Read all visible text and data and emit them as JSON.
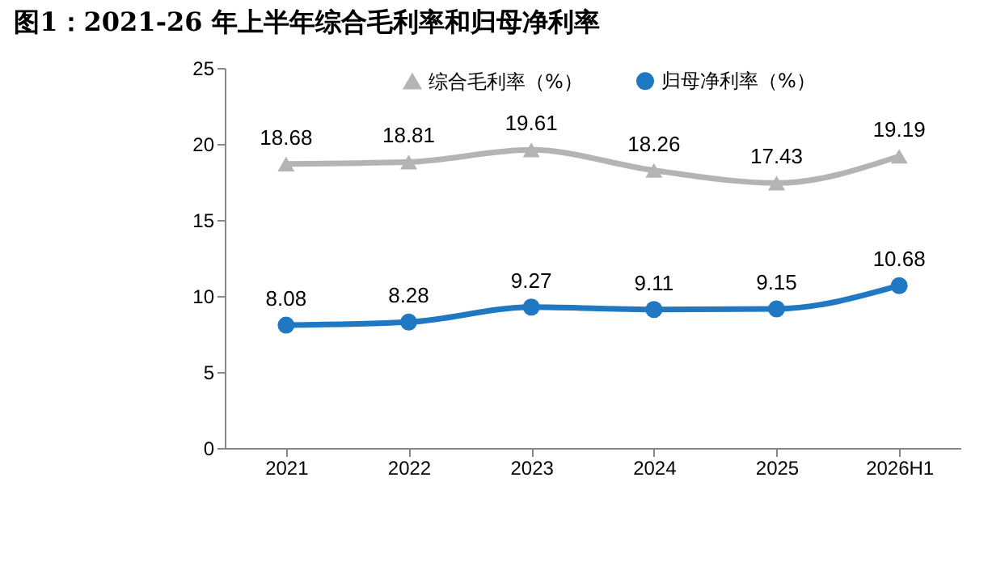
{
  "chart_data": {
    "type": "line",
    "title": "图1：2021-26 年上半年综合毛利率和归母净利率",
    "categories": [
      "2021",
      "2022",
      "2023",
      "2024",
      "2025",
      "2026H1"
    ],
    "series": [
      {
        "name": "综合毛利率（%）",
        "color": "#b4b4b4",
        "marker": "triangle",
        "values": [
          18.68,
          18.81,
          19.61,
          18.26,
          17.43,
          19.19
        ]
      },
      {
        "name": "归母净利率（%）",
        "color": "#1f78c1",
        "marker": "circle",
        "values": [
          8.08,
          8.28,
          9.27,
          9.11,
          9.15,
          10.68
        ]
      }
    ],
    "ylim": [
      0,
      25
    ],
    "yticks": [
      0,
      5,
      10,
      15,
      20,
      25
    ],
    "grid": false,
    "legend": "top",
    "data_labels": true
  }
}
